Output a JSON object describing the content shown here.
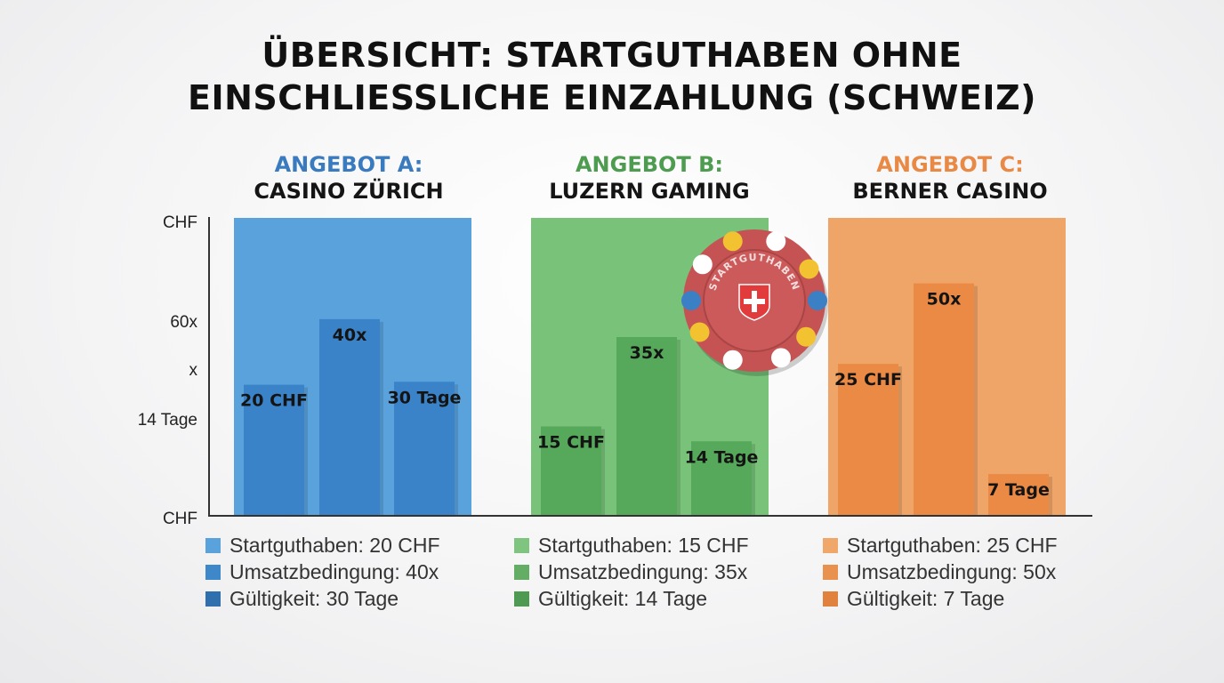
{
  "title_lines": [
    "ÜBERSICHT: STARTGUTHABEN OHNE",
    "EINSCHLIESSLICHE EINZAHLUNG (SCHWEIZ)"
  ],
  "y_axis_labels": [
    "CHF",
    "60x",
    "x",
    "14 Tage",
    "CHF"
  ],
  "chip_text": "STARTGUTHABEN",
  "colors": {
    "blue": {
      "panel": "#5aa2dc",
      "bar": "#3a83c8",
      "sw": [
        "#5aa2dc",
        "#3e87c9",
        "#2f6fae"
      ],
      "head": "#3a7bbf"
    },
    "green": {
      "panel": "#78c27a",
      "bar": "#56a85a",
      "sw": [
        "#7fc47f",
        "#63ad65",
        "#4f9a52"
      ],
      "head": "#4e9c4f"
    },
    "orange": {
      "panel": "#efa567",
      "bar": "#ea8a45",
      "sw": [
        "#f0a76a",
        "#e9924f",
        "#e0813e"
      ],
      "head": "#e88a45"
    },
    "chip": "#c65353"
  },
  "chart_data": {
    "type": "bar",
    "title": "ÜBERSICHT: STARTGUTHABEN OHNE EINSCHLIESSLICHE EINZAHLUNG (SCHWEIZ)",
    "groups": [
      {
        "name": "ANGEBOT A:",
        "casino": "CASINO ZÜRICH",
        "color": "blue",
        "bars": [
          {
            "label": "20 CHF",
            "value": 20,
            "unit": "CHF",
            "level": 0.44
          },
          {
            "label": "40x",
            "value": 40,
            "unit": "x",
            "level": 0.66
          },
          {
            "label": "30 Tage",
            "value": 30,
            "unit": "Tage",
            "level": 0.45
          }
        ],
        "legend": [
          "Startguthaben: 20 CHF",
          "Umsatzbedingung: 40x",
          "Gültigkeit: 30 Tage"
        ]
      },
      {
        "name": "ANGEBOT B:",
        "casino": "LUZERN GAMING",
        "color": "green",
        "bars": [
          {
            "label": "15 CHF",
            "value": 15,
            "unit": "CHF",
            "level": 0.3
          },
          {
            "label": "35x",
            "value": 35,
            "unit": "x",
            "level": 0.6
          },
          {
            "label": "14 Tage",
            "value": 14,
            "unit": "Tage",
            "level": 0.25
          }
        ],
        "legend": [
          "Startguthaben: 15 CHF",
          "Umsatzbedingung: 35x",
          "Gültigkeit: 14 Tage"
        ]
      },
      {
        "name": "ANGEBOT C:",
        "casino": "BERNER CASINO",
        "color": "orange",
        "bars": [
          {
            "label": "25 CHF",
            "value": 25,
            "unit": "CHF",
            "level": 0.51
          },
          {
            "label": "50x",
            "value": 50,
            "unit": "x",
            "level": 0.78
          },
          {
            "label": "7 Tage",
            "value": 7,
            "unit": "Tage",
            "level": 0.14
          }
        ],
        "legend": [
          "Startguthaben: 25 CHF",
          "Umsatzbedingung: 50x",
          "Gültigkeit: 7 Tage"
        ]
      }
    ],
    "grid": false,
    "legend_position": "bottom"
  }
}
